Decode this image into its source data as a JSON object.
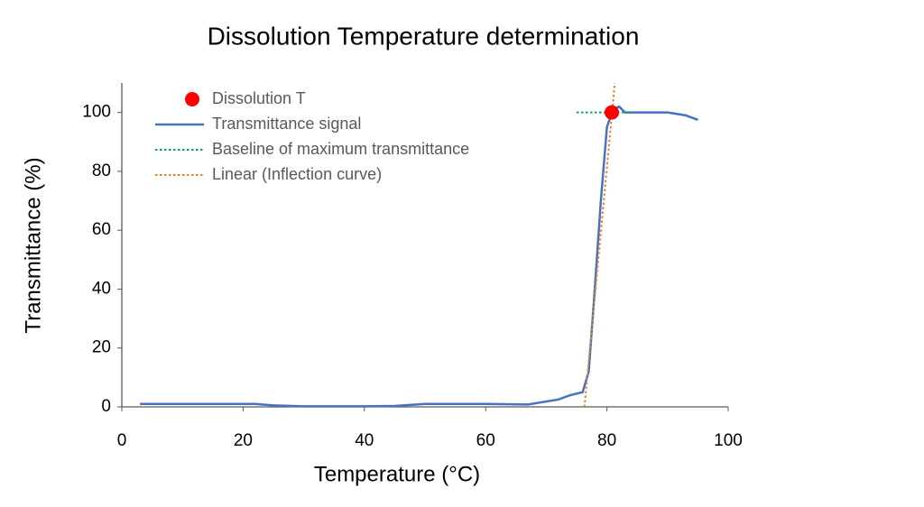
{
  "chart_data": {
    "type": "line",
    "title": "Dissolution Temperature determination",
    "x_label": "Temperature (°C)",
    "y_label": "Transmittance (%)",
    "xlim": [
      0,
      100
    ],
    "xticks": [
      0,
      20,
      40,
      60,
      80,
      100
    ],
    "ylim": [
      0,
      110
    ],
    "yticks": [
      0,
      20,
      40,
      60,
      80,
      100
    ],
    "grid": false,
    "legend": "upper-left",
    "series": [
      {
        "name": "Dissolution T",
        "color": "#ff0000",
        "style": "marker",
        "x": [
          80.8
        ],
        "values": [
          100
        ]
      },
      {
        "name": "Transmittance signal",
        "color": "#4472c4",
        "style": "solid",
        "x": [
          3,
          10,
          20,
          22,
          25,
          30,
          40,
          45,
          50,
          60,
          67,
          72,
          74,
          76,
          77,
          78,
          79,
          80,
          81,
          82,
          83,
          85,
          90,
          93,
          95
        ],
        "values": [
          1,
          1,
          1,
          1,
          0.5,
          0.2,
          0.2,
          0.3,
          1,
          1,
          0.8,
          2.5,
          4,
          5,
          12,
          40,
          70,
          95,
          101,
          102,
          100,
          100,
          100,
          99,
          97.5
        ]
      },
      {
        "name": "Baseline of maximum transmittance",
        "color": "#00b050",
        "style": "dotted",
        "x": [
          75,
          84
        ],
        "values": [
          100,
          100
        ]
      },
      {
        "name": "Linear (Inflection curve)",
        "color": "#ed7d31",
        "style": "dotted",
        "x": [
          76.3,
          81.3
        ],
        "values": [
          0,
          110
        ]
      }
    ]
  }
}
